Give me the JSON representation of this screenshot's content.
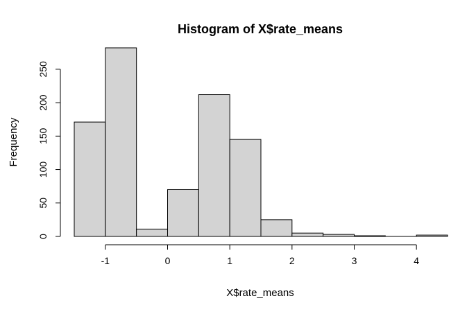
{
  "chart_data": {
    "type": "bar",
    "title": "Histogram of X$rate_means",
    "xlabel": "X$rate_means",
    "ylabel": "Frequency",
    "bin_edges": [
      -1.5,
      -1.0,
      -0.5,
      0.0,
      0.5,
      1.0,
      1.5,
      2.0,
      2.5,
      3.0,
      3.5,
      4.0,
      4.5
    ],
    "values": [
      171,
      282,
      11,
      70,
      212,
      145,
      25,
      5,
      3,
      1,
      0,
      2
    ],
    "x_ticks": [
      -1,
      0,
      1,
      2,
      3,
      4
    ],
    "x_tick_labels": [
      "-1",
      "0",
      "1",
      "2",
      "3",
      "4"
    ],
    "y_ticks": [
      0,
      50,
      100,
      150,
      200,
      250
    ],
    "y_tick_labels": [
      "0",
      "50",
      "100",
      "150",
      "200",
      "250"
    ],
    "xlim": [
      -1.5,
      4.5
    ],
    "ylim": [
      0,
      282
    ],
    "bar_fill": "#d3d3d3",
    "bar_stroke": "#000000",
    "grid": false
  }
}
